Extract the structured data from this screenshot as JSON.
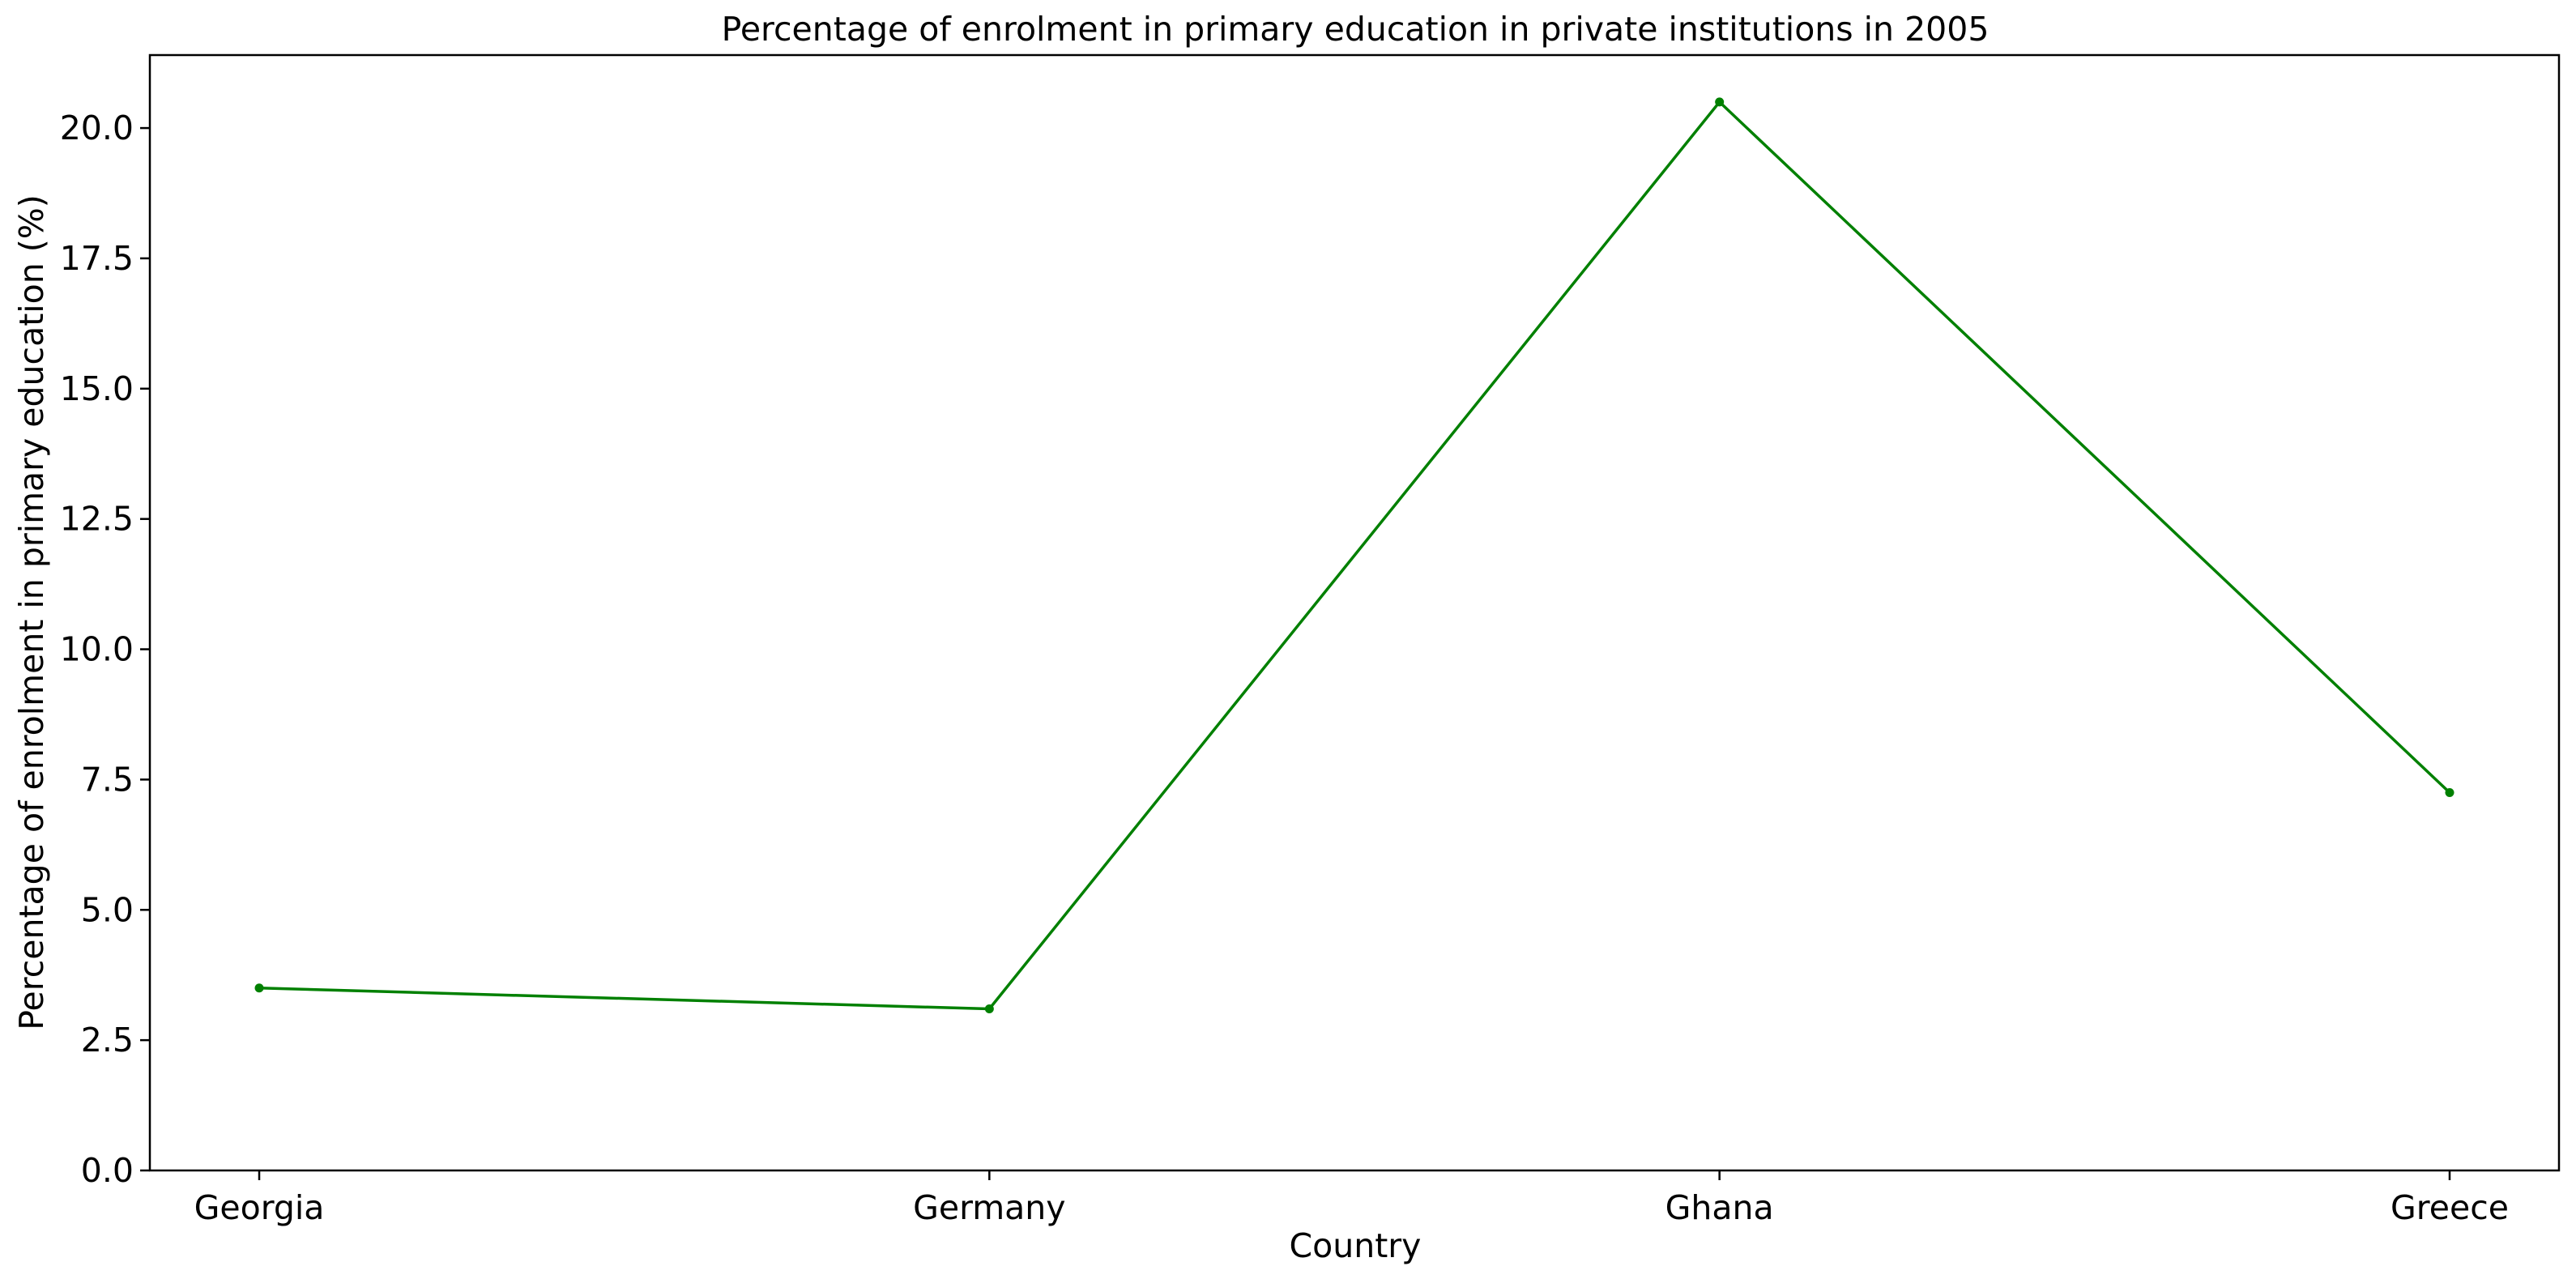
{
  "chart_data": {
    "type": "line",
    "title": "Percentage of enrolment in primary education in private institutions in 2005",
    "xlabel": "Country",
    "ylabel": "Percentage of enrolment in primary education (%)",
    "categories": [
      "Georgia",
      "Germany",
      "Ghana",
      "Greece"
    ],
    "series": [
      {
        "values": [
          3.5,
          3.1,
          20.5,
          7.25
        ],
        "color": "#008000",
        "marker": "circle"
      }
    ],
    "ylim": [
      0,
      21.4
    ],
    "yticks": [
      0.0,
      2.5,
      5.0,
      7.5,
      10.0,
      12.5,
      15.0,
      17.5,
      20.0
    ],
    "ytick_labels": [
      "0.0",
      "2.5",
      "5.0",
      "7.5",
      "10.0",
      "12.5",
      "15.0",
      "17.5",
      "20.0"
    ],
    "grid": false,
    "legend": "none"
  }
}
